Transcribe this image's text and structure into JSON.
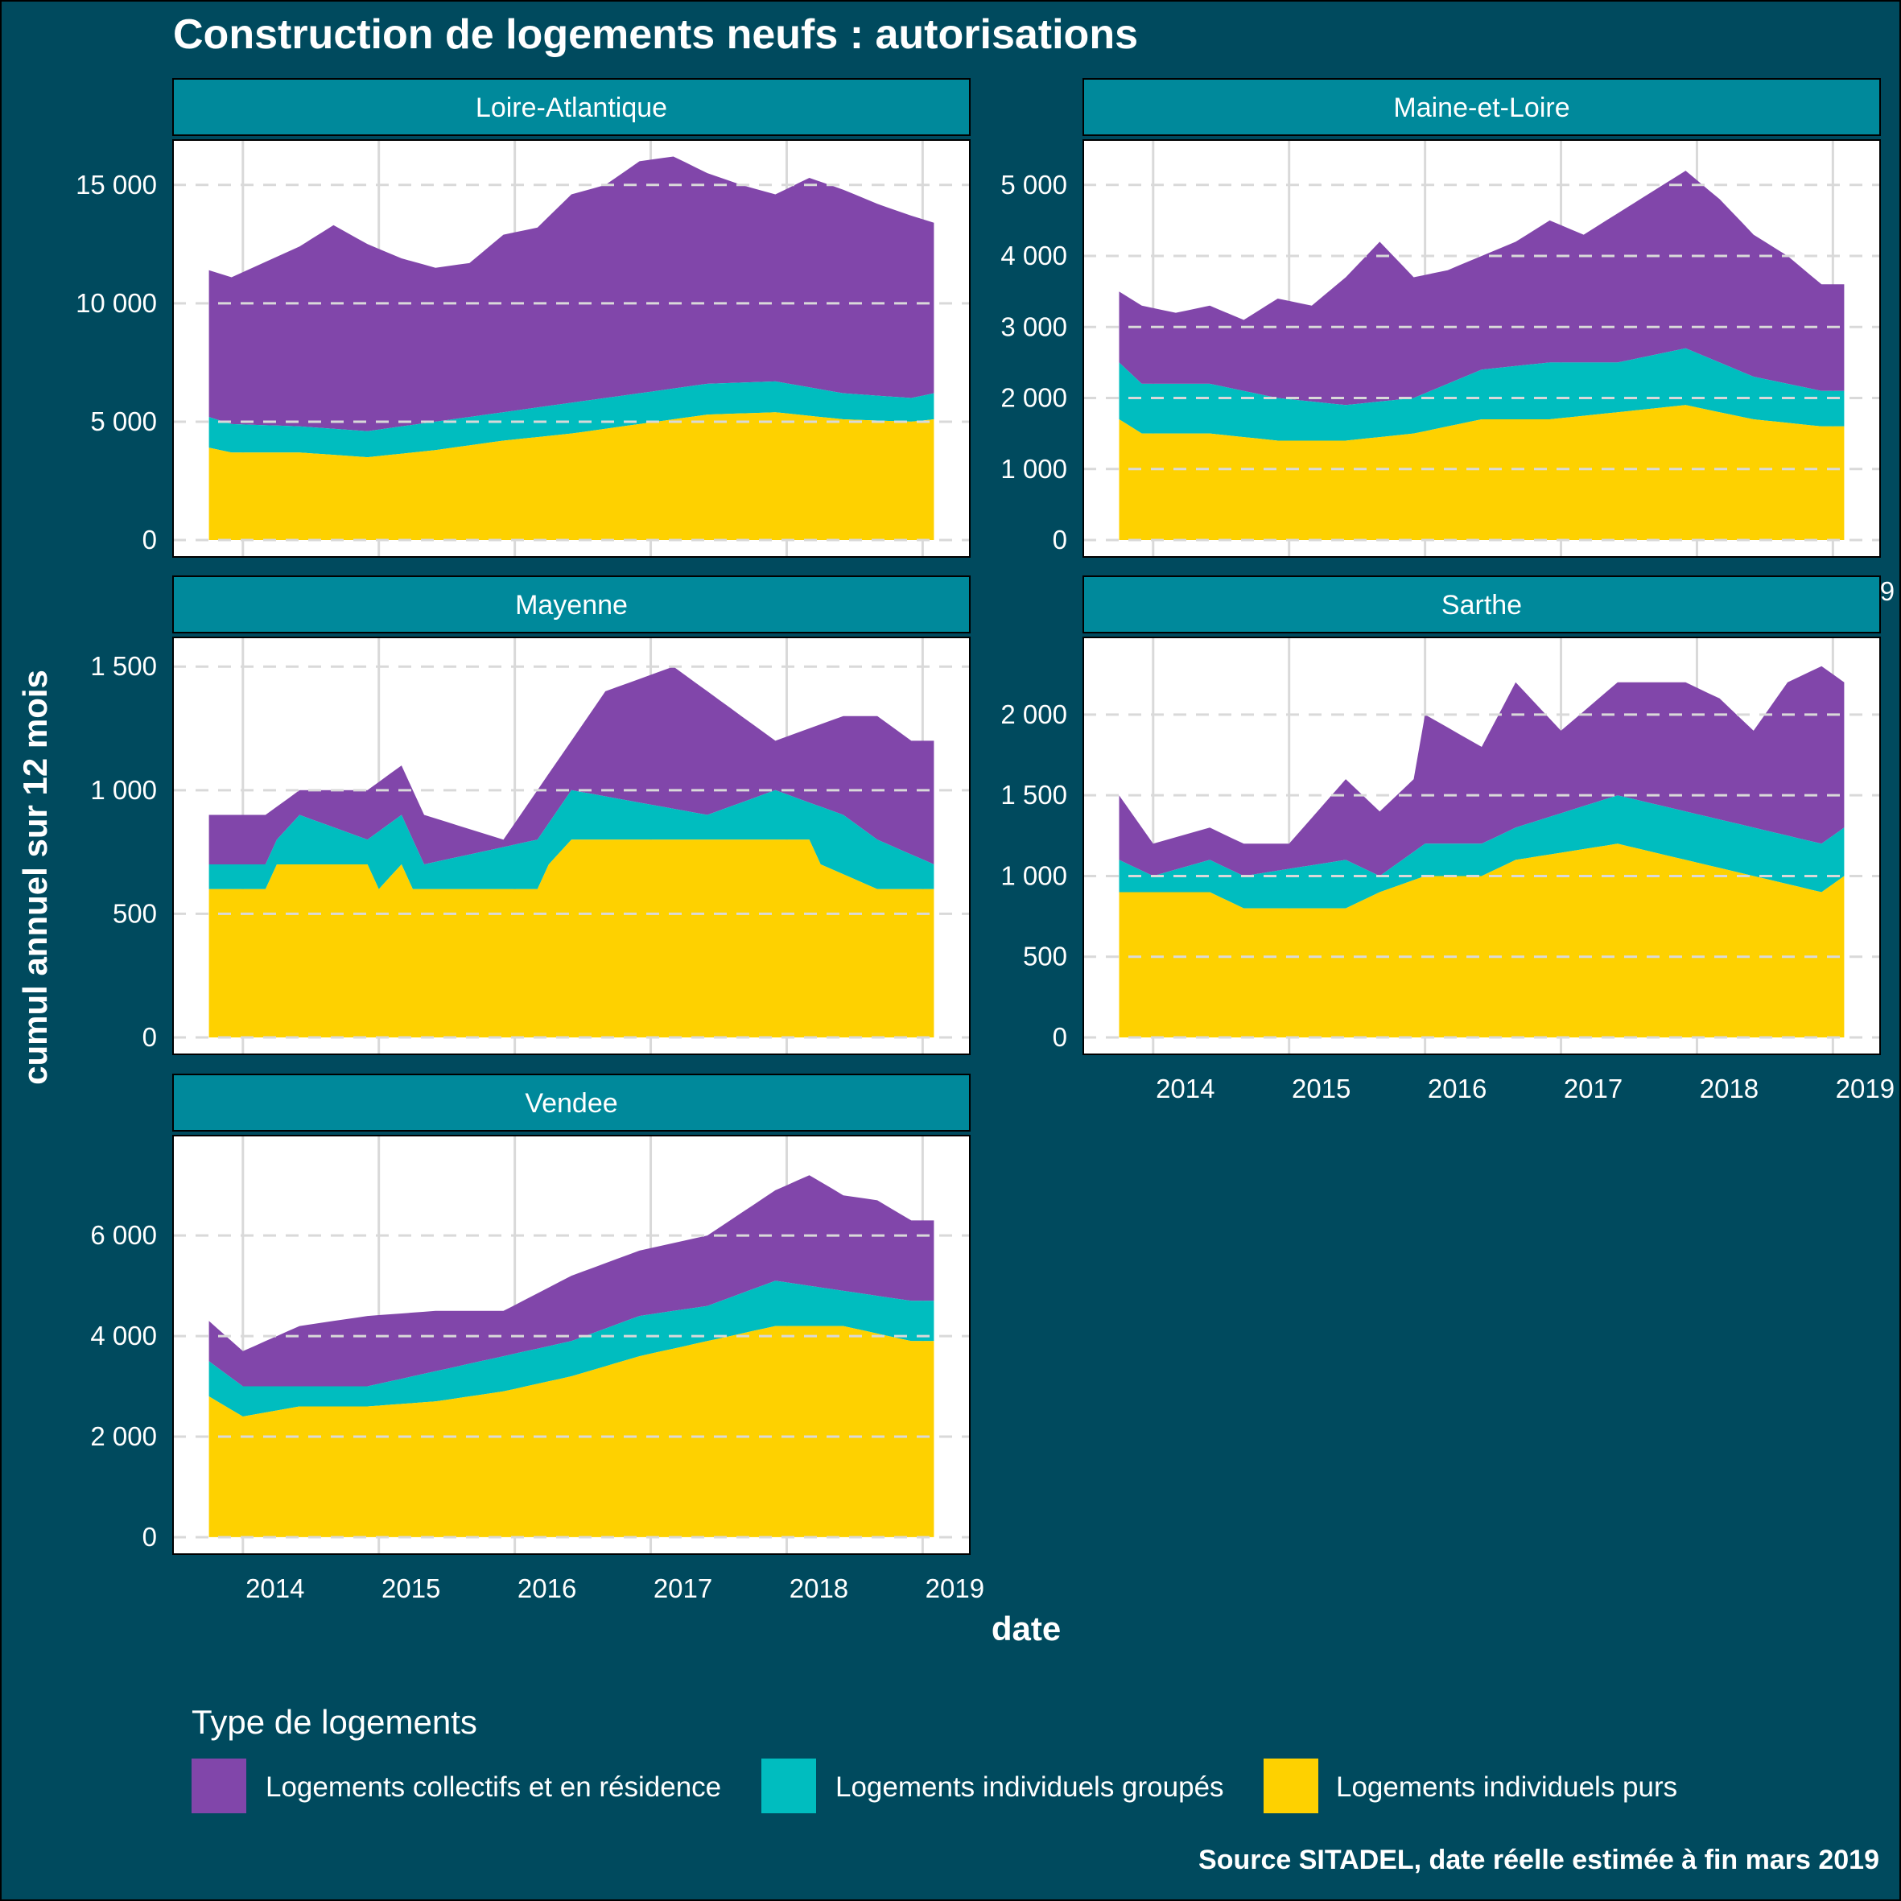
{
  "title": "Construction de logements neufs : autorisations",
  "caption": "Source SITADEL, date réelle estimée à fin mars 2019",
  "legend": {
    "title": "Type de logements",
    "items": [
      {
        "label": "Logements collectifs et en résidence",
        "color": "#8146aa"
      },
      {
        "label": "Logements individuels groupés",
        "color": "#00bdbf"
      },
      {
        "label": "Logements individuels purs",
        "color": "#fed100"
      }
    ]
  },
  "colors": {
    "background": "#004a5e",
    "strip": "#00899b",
    "panel": "#ffffff",
    "grid": "#d9d9d9",
    "collectifs": "#8146aa",
    "groupes": "#00bdbf",
    "purs": "#fed100"
  },
  "chart_data": {
    "type": "area",
    "stacked": true,
    "xlabel": "date",
    "ylabel": "cumul annuel sur 12 mois",
    "x_ticks": [
      "2014",
      "2015",
      "2016",
      "2017",
      "2018",
      "2019"
    ],
    "x_range": [
      "2013-10",
      "2019-02"
    ],
    "series_names": [
      "Logements individuels purs",
      "Logements individuels groupés",
      "Logements collectifs et en résidence"
    ],
    "panels": [
      {
        "name": "Loire-Atlantique",
        "ylim": [
          0,
          16500
        ],
        "y_ticks": [
          0,
          5000,
          10000,
          15000
        ],
        "y_tick_labels": [
          "0",
          "5 000",
          "10 000",
          "15 000"
        ],
        "purs_points": [
          [
            "2013-10",
            3900
          ],
          [
            "2013-12",
            3700
          ],
          [
            "2014-06",
            3700
          ],
          [
            "2014-12",
            3500
          ],
          [
            "2015-06",
            3800
          ],
          [
            "2015-12",
            4200
          ],
          [
            "2016-06",
            4500
          ],
          [
            "2016-12",
            4900
          ],
          [
            "2017-06",
            5300
          ],
          [
            "2017-12",
            5400
          ],
          [
            "2018-06",
            5100
          ],
          [
            "2018-12",
            5000
          ],
          [
            "2019-02",
            5100
          ]
        ],
        "groupes_points": [
          [
            "2013-10",
            5200
          ],
          [
            "2013-12",
            4900
          ],
          [
            "2014-06",
            4800
          ],
          [
            "2014-12",
            4600
          ],
          [
            "2015-06",
            5000
          ],
          [
            "2015-12",
            5400
          ],
          [
            "2016-06",
            5800
          ],
          [
            "2016-12",
            6200
          ],
          [
            "2017-06",
            6600
          ],
          [
            "2017-12",
            6700
          ],
          [
            "2018-06",
            6200
          ],
          [
            "2018-12",
            6000
          ],
          [
            "2019-02",
            6200
          ]
        ],
        "total_points": [
          [
            "2013-10",
            11400
          ],
          [
            "2013-12",
            11100
          ],
          [
            "2014-06",
            12400
          ],
          [
            "2014-09",
            13300
          ],
          [
            "2014-12",
            12500
          ],
          [
            "2015-03",
            11900
          ],
          [
            "2015-06",
            11500
          ],
          [
            "2015-09",
            11700
          ],
          [
            "2015-12",
            12900
          ],
          [
            "2016-03",
            13200
          ],
          [
            "2016-06",
            14600
          ],
          [
            "2016-09",
            15000
          ],
          [
            "2016-12",
            16000
          ],
          [
            "2017-03",
            16200
          ],
          [
            "2017-06",
            15500
          ],
          [
            "2017-09",
            15000
          ],
          [
            "2017-12",
            14600
          ],
          [
            "2018-03",
            15300
          ],
          [
            "2018-06",
            14800
          ],
          [
            "2018-09",
            14200
          ],
          [
            "2018-12",
            13700
          ],
          [
            "2019-02",
            13400
          ]
        ]
      },
      {
        "name": "Maine-et-Loire",
        "ylim": [
          0,
          5500
        ],
        "y_ticks": [
          0,
          1000,
          2000,
          3000,
          4000,
          5000
        ],
        "y_tick_labels": [
          "0",
          "1 000",
          "2 000",
          "3 000",
          "4 000",
          "5 000"
        ],
        "purs_points": [
          [
            "2013-10",
            1700
          ],
          [
            "2013-12",
            1500
          ],
          [
            "2014-06",
            1500
          ],
          [
            "2014-12",
            1400
          ],
          [
            "2015-06",
            1400
          ],
          [
            "2015-12",
            1500
          ],
          [
            "2016-03",
            1600
          ],
          [
            "2016-06",
            1700
          ],
          [
            "2016-12",
            1700
          ],
          [
            "2017-06",
            1800
          ],
          [
            "2017-12",
            1900
          ],
          [
            "2018-06",
            1700
          ],
          [
            "2018-12",
            1600
          ],
          [
            "2019-02",
            1600
          ]
        ],
        "groupes_points": [
          [
            "2013-10",
            2500
          ],
          [
            "2013-12",
            2200
          ],
          [
            "2014-06",
            2200
          ],
          [
            "2014-12",
            2000
          ],
          [
            "2015-06",
            1900
          ],
          [
            "2015-12",
            2000
          ],
          [
            "2016-03",
            2200
          ],
          [
            "2016-06",
            2400
          ],
          [
            "2016-12",
            2500
          ],
          [
            "2017-06",
            2500
          ],
          [
            "2017-12",
            2700
          ],
          [
            "2018-06",
            2300
          ],
          [
            "2018-12",
            2100
          ],
          [
            "2019-02",
            2100
          ]
        ],
        "total_points": [
          [
            "2013-10",
            3500
          ],
          [
            "2013-12",
            3300
          ],
          [
            "2014-03",
            3200
          ],
          [
            "2014-06",
            3300
          ],
          [
            "2014-09",
            3100
          ],
          [
            "2014-12",
            3400
          ],
          [
            "2015-03",
            3300
          ],
          [
            "2015-06",
            3700
          ],
          [
            "2015-09",
            4200
          ],
          [
            "2015-12",
            3700
          ],
          [
            "2016-03",
            3800
          ],
          [
            "2016-06",
            4000
          ],
          [
            "2016-09",
            4200
          ],
          [
            "2016-12",
            4500
          ],
          [
            "2017-03",
            4300
          ],
          [
            "2017-06",
            4600
          ],
          [
            "2017-09",
            4900
          ],
          [
            "2017-12",
            5200
          ],
          [
            "2018-03",
            4800
          ],
          [
            "2018-06",
            4300
          ],
          [
            "2018-09",
            4000
          ],
          [
            "2018-12",
            3600
          ],
          [
            "2019-02",
            3600
          ]
        ]
      },
      {
        "name": "Mayenne",
        "ylim": [
          0,
          1580
        ],
        "y_ticks": [
          0,
          500,
          1000,
          1500
        ],
        "y_tick_labels": [
          "0",
          "500",
          "1 000",
          "1 500"
        ],
        "purs_points": [
          [
            "2013-10",
            600
          ],
          [
            "2014-03",
            600
          ],
          [
            "2014-04",
            700
          ],
          [
            "2014-12",
            700
          ],
          [
            "2015-01",
            600
          ],
          [
            "2015-03",
            700
          ],
          [
            "2015-04",
            600
          ],
          [
            "2016-03",
            600
          ],
          [
            "2016-04",
            700
          ],
          [
            "2016-06",
            800
          ],
          [
            "2018-03",
            800
          ],
          [
            "2018-04",
            700
          ],
          [
            "2018-09",
            600
          ],
          [
            "2019-02",
            600
          ]
        ],
        "groupes_points": [
          [
            "2013-10",
            700
          ],
          [
            "2014-03",
            700
          ],
          [
            "2014-04",
            800
          ],
          [
            "2014-06",
            900
          ],
          [
            "2014-12",
            800
          ],
          [
            "2015-03",
            900
          ],
          [
            "2015-05",
            700
          ],
          [
            "2016-03",
            800
          ],
          [
            "2016-06",
            1000
          ],
          [
            "2017-06",
            900
          ],
          [
            "2017-12",
            1000
          ],
          [
            "2018-06",
            900
          ],
          [
            "2018-09",
            800
          ],
          [
            "2019-02",
            700
          ]
        ],
        "total_points": [
          [
            "2013-10",
            900
          ],
          [
            "2014-03",
            900
          ],
          [
            "2014-06",
            1000
          ],
          [
            "2014-12",
            1000
          ],
          [
            "2015-03",
            1100
          ],
          [
            "2015-05",
            900
          ],
          [
            "2015-12",
            800
          ],
          [
            "2016-03",
            1000
          ],
          [
            "2016-06",
            1200
          ],
          [
            "2016-09",
            1400
          ],
          [
            "2017-03",
            1500
          ],
          [
            "2017-06",
            1400
          ],
          [
            "2017-09",
            1300
          ],
          [
            "2017-12",
            1200
          ],
          [
            "2018-06",
            1300
          ],
          [
            "2018-09",
            1300
          ],
          [
            "2018-12",
            1200
          ],
          [
            "2019-02",
            1200
          ]
        ]
      },
      {
        "name": "Sarthe",
        "ylim": [
          0,
          2420
        ],
        "y_ticks": [
          0,
          500,
          1000,
          1500,
          2000
        ],
        "y_tick_labels": [
          "0",
          "500",
          "1 000",
          "1 500",
          "2 000"
        ],
        "purs_points": [
          [
            "2013-10",
            900
          ],
          [
            "2014-06",
            900
          ],
          [
            "2014-09",
            800
          ],
          [
            "2015-06",
            800
          ],
          [
            "2015-09",
            900
          ],
          [
            "2016-01",
            1000
          ],
          [
            "2016-06",
            1000
          ],
          [
            "2016-09",
            1100
          ],
          [
            "2017-06",
            1200
          ],
          [
            "2017-12",
            1100
          ],
          [
            "2018-06",
            1000
          ],
          [
            "2018-12",
            900
          ],
          [
            "2019-02",
            1000
          ]
        ],
        "groupes_points": [
          [
            "2013-10",
            1100
          ],
          [
            "2014-01",
            1000
          ],
          [
            "2014-06",
            1100
          ],
          [
            "2014-09",
            1000
          ],
          [
            "2015-06",
            1100
          ],
          [
            "2015-09",
            1000
          ],
          [
            "2016-01",
            1200
          ],
          [
            "2016-06",
            1200
          ],
          [
            "2016-09",
            1300
          ],
          [
            "2017-06",
            1500
          ],
          [
            "2017-12",
            1400
          ],
          [
            "2018-06",
            1300
          ],
          [
            "2018-12",
            1200
          ],
          [
            "2019-02",
            1300
          ]
        ],
        "total_points": [
          [
            "2013-10",
            1500
          ],
          [
            "2014-01",
            1200
          ],
          [
            "2014-06",
            1300
          ],
          [
            "2014-09",
            1200
          ],
          [
            "2015-01",
            1200
          ],
          [
            "2015-06",
            1600
          ],
          [
            "2015-09",
            1400
          ],
          [
            "2015-12",
            1600
          ],
          [
            "2016-01",
            2000
          ],
          [
            "2016-06",
            1800
          ],
          [
            "2016-09",
            2200
          ],
          [
            "2017-01",
            1900
          ],
          [
            "2017-06",
            2200
          ],
          [
            "2017-12",
            2200
          ],
          [
            "2018-03",
            2100
          ],
          [
            "2018-06",
            1900
          ],
          [
            "2018-09",
            2200
          ],
          [
            "2018-12",
            2300
          ],
          [
            "2019-02",
            2200
          ]
        ]
      },
      {
        "name": "Vendee",
        "ylim": [
          0,
          7800
        ],
        "y_ticks": [
          0,
          2000,
          4000,
          6000
        ],
        "y_tick_labels": [
          "0",
          "2 000",
          "4 000",
          "6 000"
        ],
        "purs_points": [
          [
            "2013-10",
            2800
          ],
          [
            "2014-01",
            2400
          ],
          [
            "2014-06",
            2600
          ],
          [
            "2014-12",
            2600
          ],
          [
            "2015-06",
            2700
          ],
          [
            "2015-12",
            2900
          ],
          [
            "2016-06",
            3200
          ],
          [
            "2016-12",
            3600
          ],
          [
            "2017-06",
            3900
          ],
          [
            "2017-12",
            4200
          ],
          [
            "2018-06",
            4200
          ],
          [
            "2018-12",
            3900
          ],
          [
            "2019-02",
            3900
          ]
        ],
        "groupes_points": [
          [
            "2013-10",
            3500
          ],
          [
            "2014-01",
            3000
          ],
          [
            "2014-06",
            3000
          ],
          [
            "2014-12",
            3000
          ],
          [
            "2015-06",
            3300
          ],
          [
            "2015-12",
            3600
          ],
          [
            "2016-06",
            3900
          ],
          [
            "2016-12",
            4400
          ],
          [
            "2017-06",
            4600
          ],
          [
            "2017-12",
            5100
          ],
          [
            "2018-06",
            4900
          ],
          [
            "2018-12",
            4700
          ],
          [
            "2019-02",
            4700
          ]
        ],
        "total_points": [
          [
            "2013-10",
            4300
          ],
          [
            "2014-01",
            3700
          ],
          [
            "2014-06",
            4200
          ],
          [
            "2014-12",
            4400
          ],
          [
            "2015-06",
            4500
          ],
          [
            "2015-12",
            4500
          ],
          [
            "2016-06",
            5200
          ],
          [
            "2016-12",
            5700
          ],
          [
            "2017-06",
            6000
          ],
          [
            "2017-12",
            6900
          ],
          [
            "2018-03",
            7200
          ],
          [
            "2018-06",
            6800
          ],
          [
            "2018-09",
            6700
          ],
          [
            "2018-12",
            6300
          ],
          [
            "2019-02",
            6300
          ]
        ]
      }
    ]
  }
}
